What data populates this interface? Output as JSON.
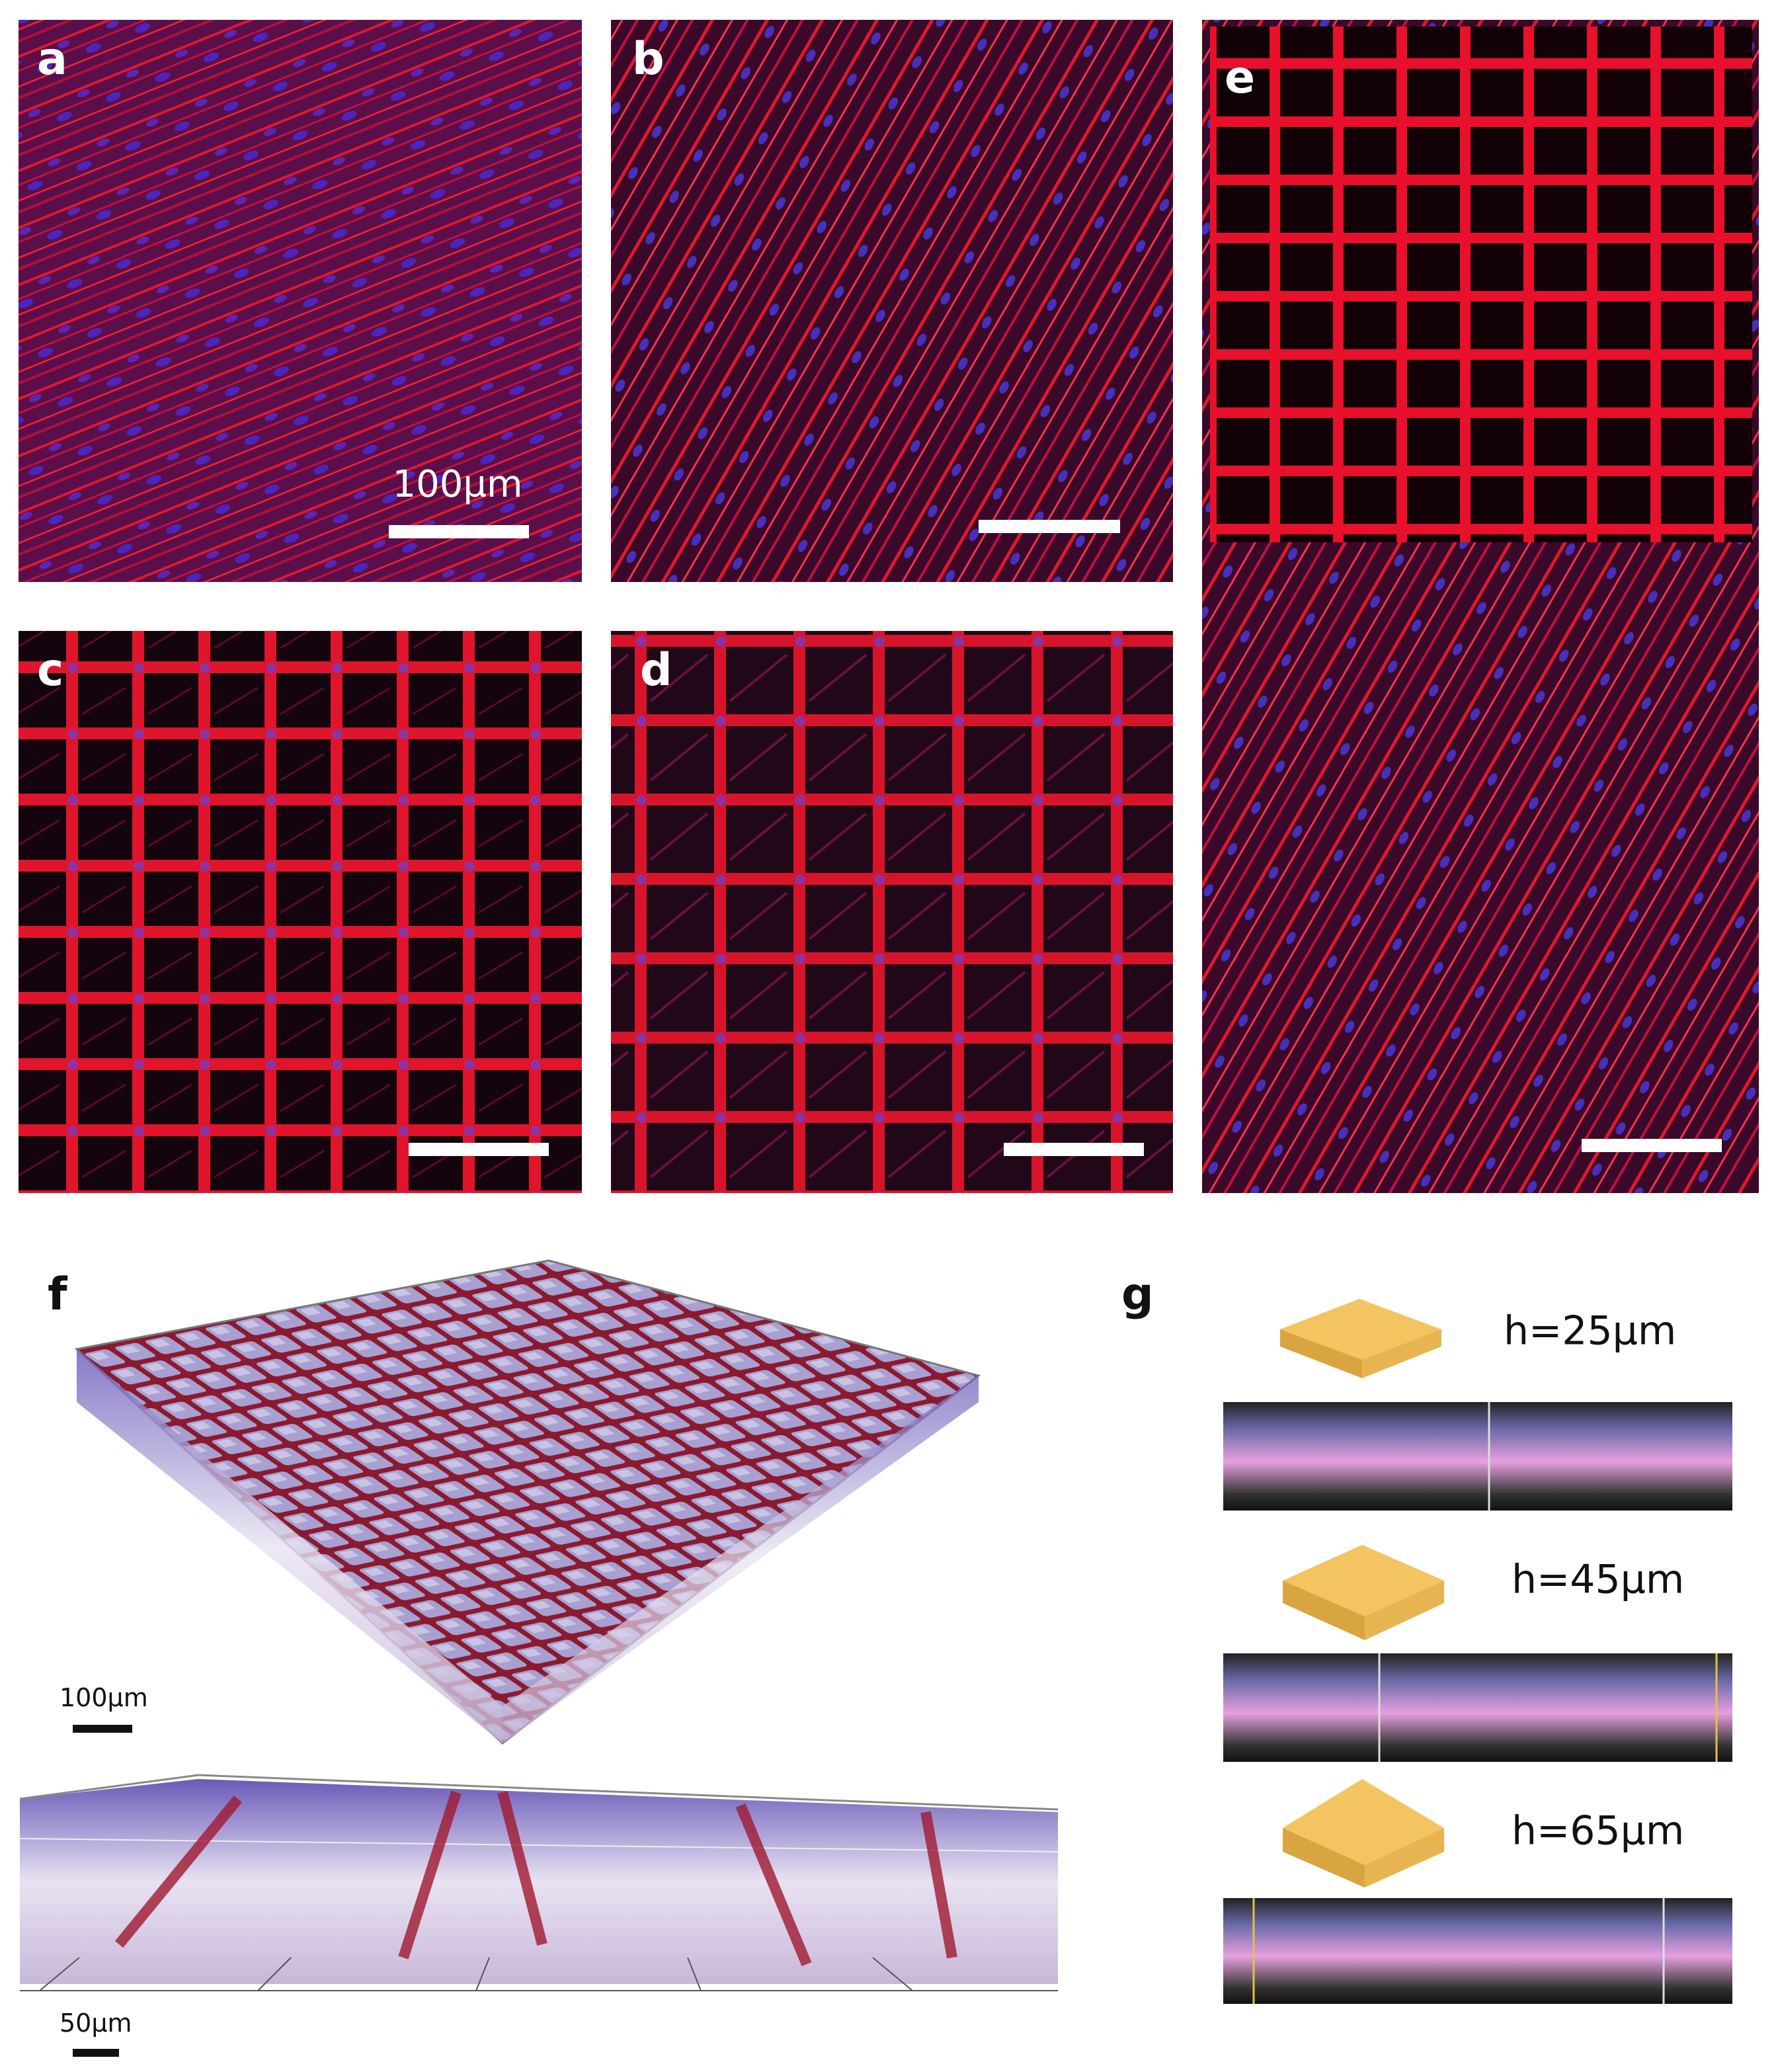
{
  "panels": [
    {
      "label": "a",
      "scale_bar": "100µm"
    },
    {
      "label": "b"
    },
    {
      "label": "c"
    },
    {
      "label": "d"
    },
    {
      "label": "e"
    },
    {
      "label": "f",
      "scale_bars": [
        "100µm",
        "50µm"
      ]
    },
    {
      "label": "g",
      "heights": [
        "h=25µm",
        "h=45µm",
        "h=65µm"
      ]
    }
  ]
}
